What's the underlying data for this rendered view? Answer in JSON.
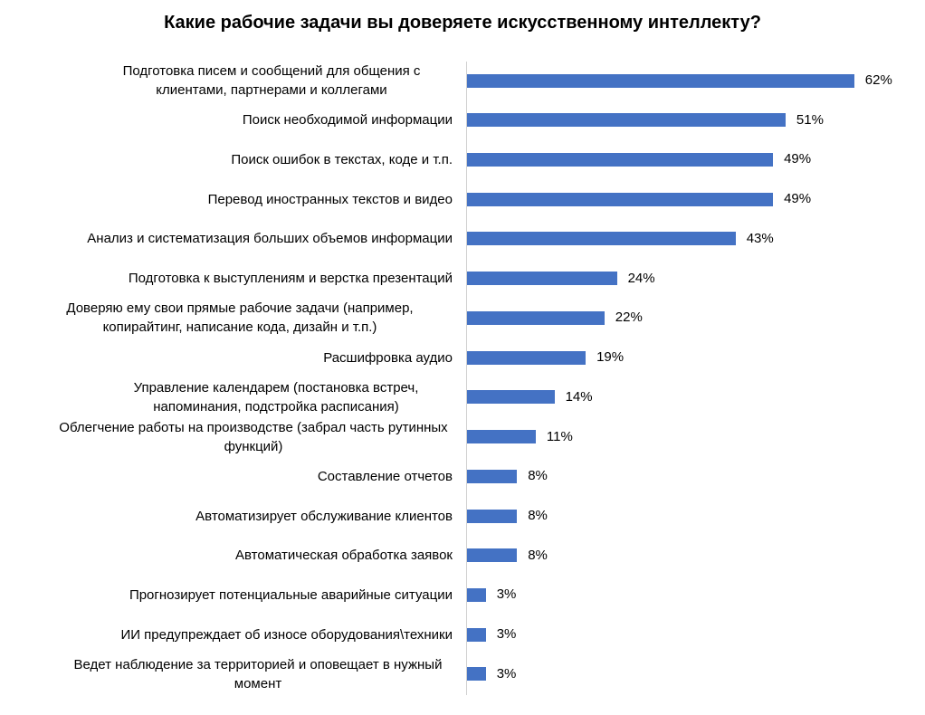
{
  "chart_data": {
    "type": "bar",
    "orientation": "horizontal",
    "title": "Какие рабочие задачи вы доверяете искусственному интеллекту?",
    "categories": [
      "Подготовка писем и сообщений для общения с клиентами, партнерами и коллегами",
      "Поиск необходимой информации",
      "Поиск ошибок в текстах, коде и т.п.",
      "Перевод иностранных текстов и видео",
      "Анализ и систематизация больших объемов информации",
      "Подготовка к выступлениям и верстка презентаций",
      "Доверяю ему свои прямые рабочие задачи (например, копирайтинг, написание кода, дизайн и т.п.)",
      "Расшифровка аудио",
      "Управление календарем (постановка встреч, напоминания, подстройка расписания)",
      "Облегчение работы на производстве (забрал часть рутинных функций)",
      "Составление отчетов",
      "Автоматизирует обслуживание клиентов",
      "Автоматическая обработка заявок",
      "Прогнозирует потенциальные аварийные ситуации",
      "ИИ предупреждает об износе оборудования\\техники",
      "Ведет наблюдение за территорией и оповещает в нужный момент"
    ],
    "values": [
      62,
      51,
      49,
      49,
      43,
      24,
      22,
      19,
      14,
      11,
      8,
      8,
      8,
      3,
      3,
      3
    ],
    "value_labels": [
      "62%",
      "51%",
      "49%",
      "49%",
      "43%",
      "24%",
      "22%",
      "19%",
      "14%",
      "11%",
      "8%",
      "8%",
      "8%",
      "3%",
      "3%",
      "3%"
    ],
    "color": "#4472c4"
  }
}
